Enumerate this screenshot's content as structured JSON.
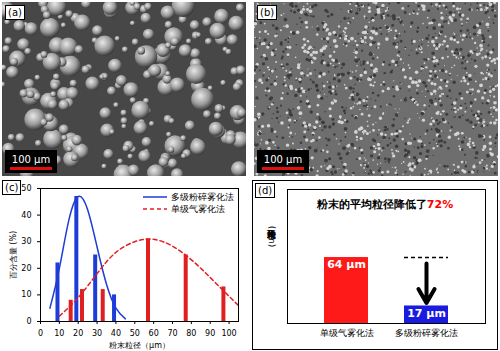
{
  "images": [
    {
      "label": "(a)",
      "scale_bar": "100 μm"
    },
    {
      "label": "(b)",
      "scale_bar": "100 μm"
    }
  ],
  "chart_data": [
    {
      "type": "bar",
      "panel": "(c)",
      "xlabel": "粉末粒径（μm）",
      "ylabel": "百分含量 (%)",
      "xlim": [
        0,
        105
      ],
      "xticks": [
        0,
        10,
        20,
        30,
        40,
        50,
        60,
        70,
        80,
        90,
        100
      ],
      "ylim": [
        0,
        50
      ],
      "yticks": [
        0,
        10,
        20,
        30,
        40,
        50
      ],
      "legend": "top-right",
      "series": [
        {
          "name": "多级粉碎雾化法",
          "color": "#1e3cd8",
          "line_style": "solid",
          "x": [
            5,
            10,
            15,
            20,
            25,
            30,
            35,
            40,
            45
          ],
          "values": [
            5,
            20,
            38,
            47,
            42,
            28,
            14,
            5,
            1
          ],
          "bars": {
            "x": [
              9,
              19,
              29,
              39
            ],
            "values": [
              22,
              47,
              25,
              10
            ]
          }
        },
        {
          "name": "单级气雾化法",
          "color": "#e02020",
          "line_style": "dashed",
          "x": [
            10,
            20,
            30,
            40,
            50,
            57,
            65,
            75,
            85,
            95,
            105
          ],
          "values": [
            2,
            9,
            18,
            26,
            30,
            31,
            30,
            26,
            20,
            13,
            6
          ],
          "bars": {
            "x": [
              16,
              22,
              33,
              57,
              77,
              97
            ],
            "values": [
              8,
              12,
              12,
              31,
              25,
              13
            ]
          }
        }
      ]
    },
    {
      "type": "bar",
      "panel": "(d)",
      "annotation": [
        {
          "text": "粉末的平均粒径降低了"
        },
        {
          "text": "72%",
          "color": "#ff0000"
        }
      ],
      "ylabel": "粉末平均粒径 (μm)",
      "categories": [
        "单级气雾化法",
        "多级粉碎雾化法"
      ],
      "values": [
        64,
        17
      ],
      "value_labels": [
        "64 μm",
        "17 μm"
      ],
      "colors": [
        "#ff1a1a",
        "#1a1ae0"
      ],
      "ylim": [
        0,
        130
      ],
      "tick_labels": "x",
      "data_labels": true
    }
  ]
}
